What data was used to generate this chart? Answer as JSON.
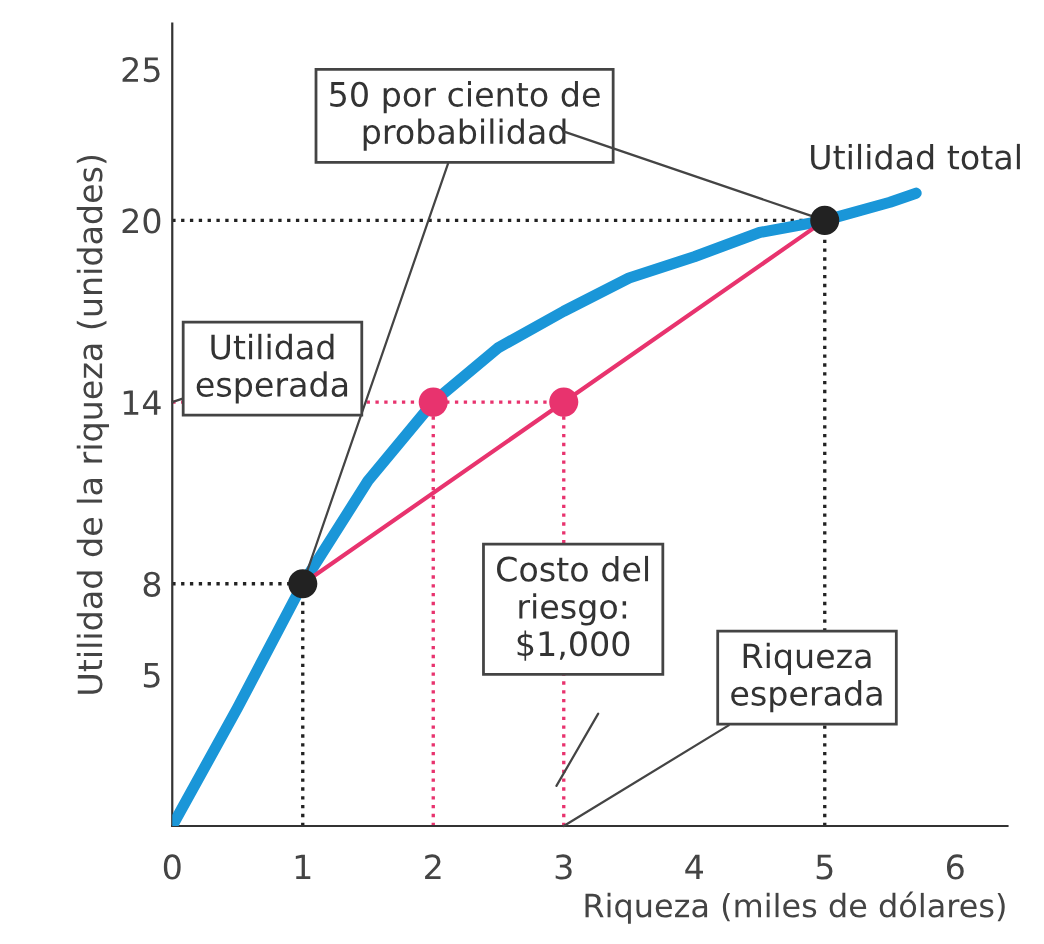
{
  "chart_data": {
    "type": "line",
    "xlabel": "Riqueza (miles de dólares)",
    "ylabel": "Utilidad de la riqueza (unidades)",
    "xlim": [
      0,
      6.4
    ],
    "ylim": [
      0,
      26.5
    ],
    "xticks": [
      0,
      1,
      2,
      3,
      4,
      5,
      6
    ],
    "yticks": [
      5,
      8,
      14,
      20,
      25
    ],
    "grid": false,
    "legend": false,
    "series": [
      {
        "color": "#1a96d8",
        "line_style": "solid",
        "marker": "none",
        "x": [
          0,
          0.5,
          1,
          1.5,
          2,
          2.5,
          3,
          3.5,
          4,
          4.5,
          5,
          5.5,
          5.7
        ],
        "values": [
          0,
          3.9,
          8,
          11.4,
          14,
          15.8,
          17.0,
          18.1,
          18.8,
          19.6,
          20,
          20.6,
          20.9
        ]
      },
      {
        "type": "line",
        "color": "#e8336e",
        "line_style": "solid",
        "marker": "none",
        "x": [
          1,
          5
        ],
        "values": [
          8,
          20
        ]
      },
      {
        "type": "line",
        "color": "#222222",
        "line_style": "dotted",
        "marker": "none",
        "x": [
          0,
          5
        ],
        "values": [
          20,
          20
        ]
      },
      {
        "type": "line",
        "color": "#222222",
        "line_style": "dotted",
        "marker": "none",
        "x": [
          5,
          5
        ],
        "values": [
          0,
          20
        ]
      },
      {
        "type": "line",
        "color": "#222222",
        "line_style": "dotted",
        "marker": "none",
        "x": [
          0,
          1
        ],
        "values": [
          8,
          8
        ]
      },
      {
        "type": "line",
        "color": "#222222",
        "line_style": "dotted",
        "marker": "none",
        "x": [
          1,
          1
        ],
        "values": [
          0,
          8
        ]
      },
      {
        "type": "line",
        "color": "#e8336e",
        "line_style": "dotted",
        "marker": "none",
        "x": [
          0,
          3
        ],
        "values": [
          14,
          14
        ]
      },
      {
        "type": "line",
        "color": "#e8336e",
        "line_style": "dotted",
        "marker": "none",
        "x": [
          2,
          2
        ],
        "values": [
          0,
          14
        ]
      },
      {
        "type": "line",
        "color": "#e8336e",
        "line_style": "dotted",
        "marker": "none",
        "x": [
          3,
          3
        ],
        "values": [
          0,
          14
        ]
      },
      {
        "type": "scatter",
        "color": "#e8336e",
        "marker": "circle",
        "x": [
          2,
          3
        ],
        "values": [
          14,
          14
        ]
      },
      {
        "type": "scatter",
        "color": "#222222",
        "marker": "circle",
        "x": [
          1,
          5
        ],
        "values": [
          8,
          20
        ]
      }
    ],
    "annotations": [
      {
        "text": "50 por ciento de\nprobabilidad",
        "x": 1,
        "y": 8
      },
      {
        "text": "Utilidad total",
        "x": 5.7,
        "y": 20.9
      },
      {
        "text": "Utilidad\nesperada",
        "x": 0,
        "y": 14
      },
      "Costo del\nriesgo:\n$1,000",
      {
        "text": "Riqueza\nesperada",
        "x": 3,
        "y": 0
      }
    ]
  }
}
